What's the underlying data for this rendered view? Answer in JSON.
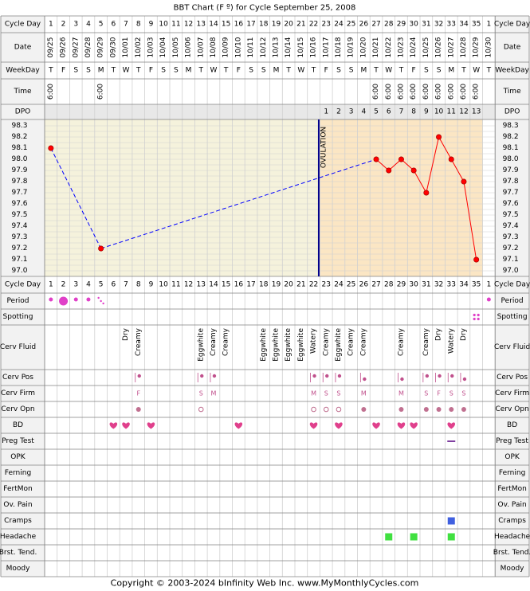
{
  "title": "BBT Chart (F º) for Cycle September 25, 2008",
  "copyright": "Copyright © 2003-2024 bInfinity Web Inc.     www.MyMonthlyCycles.com",
  "colors": {
    "border": "#808080",
    "grid": "#d0d0d0",
    "label_bg": "#f2f2f2",
    "pre_ovulation_bg": "#f5f2dc",
    "post_ovulation_bg": "#fbe6c4",
    "temp_line": "#ff0000",
    "temp_dash": "#0000ff",
    "ovulation_line": "#00008b",
    "marker_pink": "#e040c8",
    "heart": "#e0408c",
    "fluid_text": "#000000",
    "cerv_text": "#c0508c",
    "preg_line": "#8040a0",
    "cramps": "#4060e0",
    "headache": "#40e040"
  },
  "labels": {
    "cycle_day": "Cycle Day",
    "date": "Date",
    "weekday": "WeekDay",
    "time": "Time",
    "dpo": "DPO",
    "ovulation": "OVULATION"
  },
  "chart_data": {
    "type": "line",
    "x": [
      1,
      2,
      3,
      4,
      5,
      6,
      7,
      8,
      9,
      10,
      11,
      12,
      13,
      14,
      15,
      16,
      17,
      18,
      19,
      20,
      21,
      22,
      23,
      24,
      25,
      26,
      27,
      28,
      29,
      30,
      31,
      32,
      33,
      34,
      35,
      1
    ],
    "dates": [
      "09/25",
      "09/26",
      "09/27",
      "09/28",
      "09/29",
      "09/30",
      "10/01",
      "10/02",
      "10/03",
      "10/04",
      "10/05",
      "10/06",
      "10/07",
      "10/08",
      "10/09",
      "10/10",
      "10/11",
      "10/12",
      "10/13",
      "10/14",
      "10/15",
      "10/16",
      "10/17",
      "10/18",
      "10/19",
      "10/20",
      "10/21",
      "10/22",
      "10/23",
      "10/24",
      "10/25",
      "10/26",
      "10/27",
      "10/28",
      "10/29",
      "10/30"
    ],
    "weekdays": [
      "T",
      "F",
      "S",
      "S",
      "M",
      "T",
      "W",
      "T",
      "F",
      "S",
      "S",
      "M",
      "T",
      "W",
      "T",
      "F",
      "S",
      "S",
      "M",
      "T",
      "W",
      "T",
      "F",
      "S",
      "S",
      "M",
      "T",
      "W",
      "T",
      "F",
      "S",
      "S",
      "M",
      "T",
      "W",
      "T"
    ],
    "times": [
      "6:00",
      "",
      "",
      "",
      "6:00",
      "",
      "",
      "",
      "",
      "",
      "",
      "",
      "",
      "",
      "",
      "",
      "",
      "",
      "",
      "",
      "",
      "",
      "",
      "",
      "",
      "",
      "6:00",
      "6:00",
      "6:00",
      "6:00",
      "6:00",
      "6:00",
      "6:00",
      "6:00",
      "6:00",
      ""
    ],
    "dpo": [
      "",
      "",
      "",
      "",
      "",
      "",
      "",
      "",
      "",
      "",
      "",
      "",
      "",
      "",
      "",
      "",
      "",
      "",
      "",
      "",
      "",
      "",
      "1",
      "2",
      "3",
      "4",
      "5",
      "6",
      "7",
      "8",
      "9",
      "10",
      "11",
      "12",
      "13",
      ""
    ],
    "temps": [
      98.1,
      null,
      null,
      null,
      97.2,
      null,
      null,
      null,
      null,
      null,
      null,
      null,
      null,
      null,
      null,
      null,
      null,
      null,
      null,
      null,
      null,
      null,
      null,
      null,
      null,
      null,
      98.0,
      97.9,
      98.0,
      97.9,
      97.7,
      98.2,
      98.0,
      97.8,
      97.1,
      null
    ],
    "y_ticks": [
      98.3,
      98.2,
      98.1,
      98.0,
      97.9,
      97.8,
      97.7,
      97.6,
      97.5,
      97.4,
      97.3,
      97.2,
      97.1,
      97.0
    ],
    "ylim": [
      97.0,
      98.3
    ],
    "ovulation_day": 22,
    "grid": true
  },
  "observations": {
    "period": [
      "dot",
      "big",
      "dot",
      "dot",
      "spots",
      "",
      "",
      "",
      "",
      "",
      "",
      "",
      "",
      "",
      "",
      "",
      "",
      "",
      "",
      "",
      "",
      "",
      "",
      "",
      "",
      "",
      "",
      "",
      "",
      "",
      "",
      "",
      "",
      "",
      "",
      "dot"
    ],
    "spotting": [
      "",
      "",
      "",
      "",
      "",
      "",
      "",
      "",
      "",
      "",
      "",
      "",
      "",
      "",
      "",
      "",
      "",
      "",
      "",
      "",
      "",
      "",
      "",
      "",
      "",
      "",
      "",
      "",
      "",
      "",
      "",
      "",
      "",
      "",
      "dots",
      ""
    ],
    "cerv_fluid": [
      "",
      "",
      "",
      "",
      "",
      "",
      "Dry",
      "Creamy",
      "",
      "",
      "",
      "",
      "Eggwhite",
      "Creamy",
      "Creamy",
      "",
      "",
      "Eggwhite",
      "Eggwhite",
      "Eggwhite",
      "Eggwhite",
      "Watery",
      "Creamy",
      "Eggwhite",
      "Creamy",
      "Creamy",
      "",
      "",
      "Creamy",
      "",
      "Creamy",
      "Dry",
      "Watery",
      "Dry",
      "",
      ""
    ],
    "cerv_pos": [
      "",
      "",
      "",
      "",
      "",
      "",
      "",
      "high",
      "",
      "",
      "",
      "",
      "high",
      "high",
      "",
      "",
      "",
      "",
      "",
      "",
      "",
      "high",
      "high",
      "high",
      "",
      "low",
      "",
      "",
      "low",
      "",
      "high",
      "high",
      "high",
      "low",
      "",
      ""
    ],
    "cerv_firm": [
      "",
      "",
      "",
      "",
      "",
      "",
      "",
      "F",
      "",
      "",
      "",
      "",
      "S",
      "M",
      "",
      "",
      "",
      "",
      "",
      "",
      "",
      "M",
      "S",
      "S",
      "",
      "M",
      "",
      "",
      "M",
      "",
      "S",
      "F",
      "S",
      "S",
      "",
      ""
    ],
    "cerv_opn": [
      "",
      "",
      "",
      "",
      "",
      "",
      "",
      "filled",
      "",
      "",
      "",
      "",
      "open",
      "",
      "",
      "",
      "",
      "",
      "",
      "",
      "",
      "open",
      "open",
      "open",
      "",
      "filled",
      "",
      "",
      "filled",
      "",
      "filled",
      "filled",
      "filled",
      "filled",
      "",
      ""
    ],
    "bd": [
      "",
      "",
      "",
      "",
      "",
      "heart",
      "heart",
      "",
      "heart",
      "",
      "",
      "",
      "",
      "",
      "",
      "heart",
      "",
      "",
      "",
      "",
      "",
      "heart",
      "",
      "heart",
      "",
      "",
      "heart",
      "",
      "heart",
      "heart",
      "",
      "",
      "heart",
      "",
      "",
      ""
    ],
    "preg_test": [
      "",
      "",
      "",
      "",
      "",
      "",
      "",
      "",
      "",
      "",
      "",
      "",
      "",
      "",
      "",
      "",
      "",
      "",
      "",
      "",
      "",
      "",
      "",
      "",
      "",
      "",
      "",
      "",
      "",
      "",
      "",
      "",
      "neg",
      "",
      "",
      ""
    ],
    "cramps": [
      "",
      "",
      "",
      "",
      "",
      "",
      "",
      "",
      "",
      "",
      "",
      "",
      "",
      "",
      "",
      "",
      "",
      "",
      "",
      "",
      "",
      "",
      "",
      "",
      "",
      "",
      "",
      "",
      "",
      "",
      "",
      "",
      "sq",
      "",
      "",
      ""
    ],
    "headache": [
      "",
      "",
      "",
      "",
      "",
      "",
      "",
      "",
      "",
      "",
      "",
      "",
      "",
      "",
      "",
      "",
      "",
      "",
      "",
      "",
      "",
      "",
      "",
      "",
      "",
      "",
      "",
      "sq",
      "",
      "sq",
      "",
      "",
      "sq",
      "",
      "",
      ""
    ]
  },
  "rows": [
    {
      "key": "period",
      "label": "Period"
    },
    {
      "key": "spotting",
      "label": "Spotting"
    },
    {
      "key": "cerv_fluid",
      "label": "Cerv Fluid"
    },
    {
      "key": "cerv_pos",
      "label": "Cerv Pos"
    },
    {
      "key": "cerv_firm",
      "label": "Cerv Firm"
    },
    {
      "key": "cerv_opn",
      "label": "Cerv Opn"
    },
    {
      "key": "bd",
      "label": "BD"
    },
    {
      "key": "preg_test",
      "label": "Preg Test"
    },
    {
      "key": "opk",
      "label": "OPK"
    },
    {
      "key": "ferning",
      "label": "Ferning"
    },
    {
      "key": "fertmon",
      "label": "FertMon"
    },
    {
      "key": "ov_pain",
      "label": "Ov. Pain"
    },
    {
      "key": "cramps",
      "label": "Cramps"
    },
    {
      "key": "headache",
      "label": "Headache"
    },
    {
      "key": "brst_tend",
      "label": "Brst. Tend."
    },
    {
      "key": "moody",
      "label": "Moody"
    }
  ]
}
